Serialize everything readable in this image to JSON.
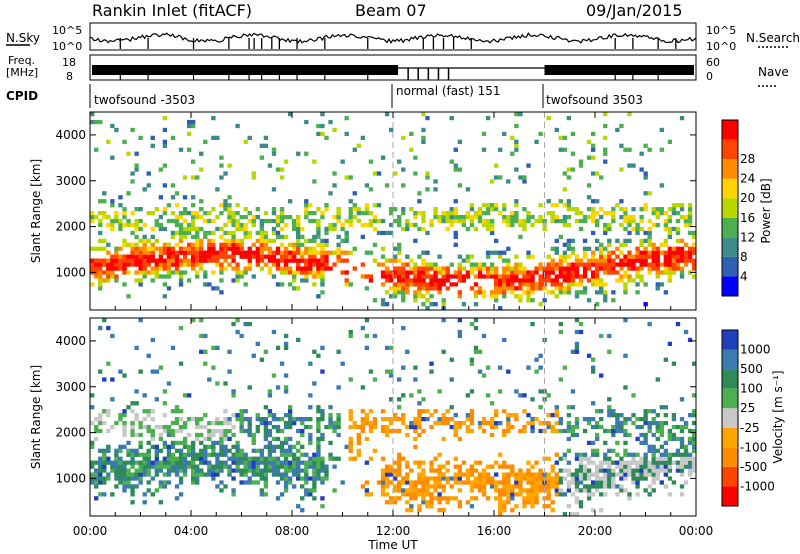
{
  "header": {
    "radar": "Rankin Inlet (fitACF)",
    "beam": "Beam 07",
    "date": "09/Jan/2015"
  },
  "aux": {
    "nsky_label": "N.Sky",
    "nsearch_label": "N.Search",
    "nsky_ticks": [
      "10^5",
      "10^0"
    ],
    "freq_label_1": "Freq.",
    "freq_label_2": "[MHz]",
    "freq_ticks": [
      "18",
      "8"
    ],
    "nave_label": "Nave",
    "nave_ticks": [
      "60",
      "0"
    ],
    "cpid_label": "CPID",
    "cpid_segments": [
      {
        "start_hour": 0.0,
        "label": "twofsound -3503"
      },
      {
        "start_hour": 12.0,
        "label": "normal (fast) 151"
      },
      {
        "start_hour": 18.0,
        "label": "twofsound 3503"
      }
    ]
  },
  "colors": {
    "power": [
      "#0000ff",
      "#2f5fb0",
      "#3c8a8a",
      "#4caf50",
      "#b9d600",
      "#ffd400",
      "#ff8c00",
      "#ff4500",
      "#ff0000"
    ],
    "velocity": [
      "#ff0000",
      "#ff4500",
      "#ff8c00",
      "#ffa500",
      "#c8c8c8",
      "#4caf50",
      "#2e8b57",
      "#3c7ab0",
      "#1f3fbf"
    ]
  },
  "chart_data": [
    {
      "type": "heatmap",
      "name": "Power",
      "ylabel": "Slant Range [km]",
      "ylim": [
        180,
        4500
      ],
      "yticks": [
        "1000",
        "2000",
        "3000",
        "4000"
      ],
      "colorbar_label": "Power [dB]",
      "colorbar_ticks": [
        "4",
        "8",
        "12",
        "16",
        "20",
        "24",
        "28"
      ]
    },
    {
      "type": "heatmap",
      "name": "Velocity",
      "ylabel": "Slant Range [km]",
      "ylim": [
        180,
        4500
      ],
      "yticks": [
        "1000",
        "2000",
        "3000",
        "4000"
      ],
      "colorbar_label": "Velocity [m s⁻¹]",
      "colorbar_ticks": [
        "1000",
        "500",
        "100",
        "25",
        "-25",
        "-100",
        "-500",
        "-1000"
      ]
    }
  ],
  "x_axis": {
    "label": "Time UT",
    "xlim_hours": [
      0,
      24
    ],
    "ticks": [
      "00:00",
      "04:00",
      "08:00",
      "12:00",
      "16:00",
      "20:00",
      "00:00"
    ]
  }
}
